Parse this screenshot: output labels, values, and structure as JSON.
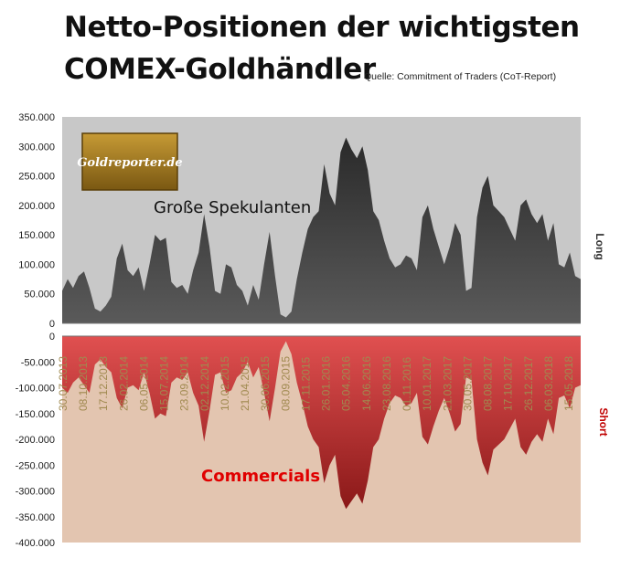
{
  "title_line1": "Netto-Positionen der wichtigsten",
  "title_line2": "COMEX-Goldhändler",
  "source": "Quelle: Commitment of Traders (CoT-Report)",
  "logo_text": "Goldreporter.de",
  "colors": {
    "upper_bg": "#c8c8c8",
    "lower_bg": "#e3c5b0",
    "spec_fill": "#3a3a3a",
    "comm_fill": "#b02a2a",
    "comm_label": "#e00000",
    "short_label": "#c00000",
    "logo_bg": "#9a7320"
  },
  "chart_data": [
    {
      "type": "area",
      "series": [
        {
          "name": "Große Spekulanten"
        }
      ],
      "ylim": [
        0,
        350000
      ],
      "yticks": [
        "350.000",
        "300.000",
        "250.000",
        "200.000",
        "150.000",
        "100.000",
        "50.000",
        "0"
      ],
      "side_label": "Long",
      "values": [
        55000,
        75000,
        60000,
        80000,
        88000,
        60000,
        25000,
        20000,
        30000,
        45000,
        110000,
        135000,
        90000,
        80000,
        95000,
        55000,
        100000,
        150000,
        140000,
        145000,
        70000,
        60000,
        65000,
        50000,
        90000,
        120000,
        185000,
        130000,
        55000,
        50000,
        100000,
        95000,
        65000,
        55000,
        30000,
        65000,
        40000,
        100000,
        155000,
        80000,
        15000,
        10000,
        20000,
        75000,
        120000,
        160000,
        180000,
        190000,
        270000,
        220000,
        200000,
        290000,
        315000,
        295000,
        280000,
        300000,
        260000,
        190000,
        175000,
        140000,
        110000,
        95000,
        100000,
        115000,
        110000,
        90000,
        180000,
        200000,
        160000,
        130000,
        100000,
        130000,
        170000,
        150000,
        55000,
        60000,
        180000,
        230000,
        250000,
        200000,
        190000,
        180000,
        160000,
        140000,
        200000,
        210000,
        185000,
        170000,
        185000,
        140000,
        170000,
        100000,
        95000,
        120000,
        80000,
        75000
      ]
    },
    {
      "type": "area",
      "series": [
        {
          "name": "Commercials"
        }
      ],
      "ylim": [
        -400000,
        0
      ],
      "yticks": [
        "0",
        "-50.000",
        "-100.000",
        "-150.000",
        "-200.000",
        "-250.000",
        "-300.000",
        "-350.000",
        "-400.000"
      ],
      "side_label": "Short",
      "values": [
        -100000,
        -110000,
        -90000,
        -80000,
        -95000,
        -110000,
        -55000,
        -45000,
        -60000,
        -70000,
        -120000,
        -140000,
        -100000,
        -95000,
        -105000,
        -70000,
        -110000,
        -160000,
        -150000,
        -155000,
        -90000,
        -80000,
        -85000,
        -70000,
        -110000,
        -135000,
        -205000,
        -145000,
        -75000,
        -70000,
        -110000,
        -105000,
        -80000,
        -70000,
        -50000,
        -80000,
        -60000,
        -110000,
        -165000,
        -100000,
        -30000,
        -10000,
        -35000,
        -90000,
        -130000,
        -175000,
        -200000,
        -215000,
        -285000,
        -250000,
        -230000,
        -310000,
        -335000,
        -320000,
        -305000,
        -325000,
        -280000,
        -215000,
        -200000,
        -160000,
        -130000,
        -115000,
        -120000,
        -135000,
        -130000,
        -110000,
        -195000,
        -210000,
        -175000,
        -145000,
        -120000,
        -150000,
        -185000,
        -170000,
        -80000,
        -85000,
        -200000,
        -245000,
        -270000,
        -220000,
        -210000,
        -200000,
        -180000,
        -160000,
        -215000,
        -230000,
        -205000,
        -190000,
        -205000,
        -160000,
        -190000,
        -120000,
        -115000,
        -140000,
        -100000,
        -95000
      ]
    }
  ],
  "x_labels": [
    "30.07.2013",
    "08.10.2013",
    "17.12.2013",
    "26.02.2014",
    "06.05.2014",
    "15.07.2014",
    "23.09.2014",
    "02.12.2014",
    "10.02.2015",
    "21.04.2015",
    "30.06.2015",
    "08.09.2015",
    "17.11.2015",
    "26.01.2016",
    "05.04.2016",
    "14.06.2016",
    "23.08.2016",
    "01.11.2016",
    "10.01.2017",
    "21.03.2017",
    "30.05.2017",
    "08.08.2017",
    "17.10.2017",
    "26.12.2017",
    "06.03.2018",
    "15.05.2018"
  ]
}
